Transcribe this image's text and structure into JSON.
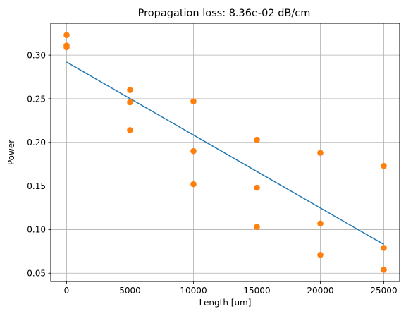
{
  "chart_data": {
    "type": "scatter",
    "title": "Propagation loss: 8.36e-02 dB/cm",
    "xlabel": "Length [um]",
    "ylabel": "Power",
    "xlim": [
      -1250,
      26250
    ],
    "ylim": [
      0.0405,
      0.3365
    ],
    "grid": true,
    "x_ticks": [
      0,
      5000,
      10000,
      15000,
      20000,
      25000
    ],
    "x_tick_labels": [
      "0",
      "5000",
      "10000",
      "15000",
      "20000",
      "25000"
    ],
    "y_ticks": [
      0.05,
      0.1,
      0.15,
      0.2,
      0.25,
      0.3
    ],
    "y_tick_labels": [
      "0.05",
      "0.10",
      "0.15",
      "0.20",
      "0.25",
      "0.30"
    ],
    "series": [
      {
        "type": "scatter",
        "color": "#ff7f0e",
        "points": [
          {
            "x": 0,
            "y": 0.323
          },
          {
            "x": 0,
            "y": 0.311
          },
          {
            "x": 0,
            "y": 0.309
          },
          {
            "x": 5000,
            "y": 0.26
          },
          {
            "x": 5000,
            "y": 0.246
          },
          {
            "x": 5000,
            "y": 0.214
          },
          {
            "x": 10000,
            "y": 0.247
          },
          {
            "x": 10000,
            "y": 0.19
          },
          {
            "x": 10000,
            "y": 0.152
          },
          {
            "x": 15000,
            "y": 0.203
          },
          {
            "x": 15000,
            "y": 0.148
          },
          {
            "x": 15000,
            "y": 0.103
          },
          {
            "x": 20000,
            "y": 0.188
          },
          {
            "x": 20000,
            "y": 0.107
          },
          {
            "x": 20000,
            "y": 0.071
          },
          {
            "x": 25000,
            "y": 0.173
          },
          {
            "x": 25000,
            "y": 0.079
          },
          {
            "x": 25000,
            "y": 0.054
          }
        ]
      },
      {
        "type": "line",
        "color": "#1f77b4",
        "points": [
          {
            "x": 0,
            "y": 0.292
          },
          {
            "x": 25000,
            "y": 0.083
          }
        ]
      }
    ]
  }
}
